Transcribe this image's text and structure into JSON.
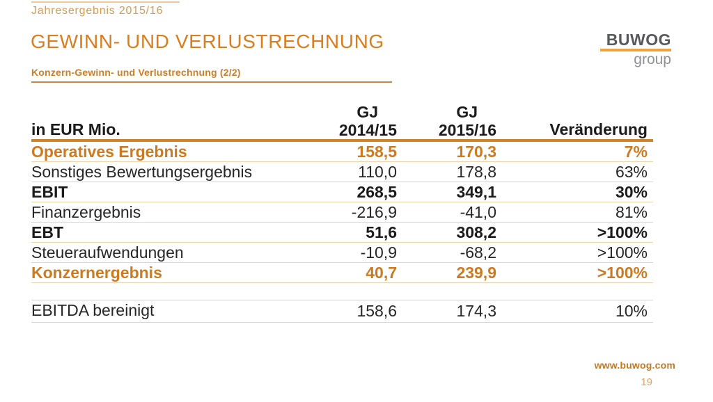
{
  "slide": {
    "eyebrow": "Jahresergebnis 2015/16",
    "title": "GEWINN- UND VERLUSTRECHNUNG",
    "subtitle": "Konzern-Gewinn- und Verlustrechnung (2/2)"
  },
  "logo": {
    "wordmark": "BUWOG",
    "suffix": "group"
  },
  "table": {
    "col_headers": {
      "label": "in EUR Mio.",
      "col2_line1": "GJ",
      "col2_line2": "2014/15",
      "col3_line1": "GJ",
      "col3_line2": "2015/16",
      "col4": "Veränderung"
    },
    "rows": [
      {
        "label": "Operatives Ergebnis",
        "gj1415": "158,5",
        "gj1516": "170,3",
        "change": "7%",
        "emphasis": "orange-bold"
      },
      {
        "label": "Sonstiges Bewertungsergebnis",
        "gj1415": "110,0",
        "gj1516": "178,8",
        "change": "63%",
        "emphasis": "regular"
      },
      {
        "label": "EBIT",
        "gj1415": "268,5",
        "gj1516": "349,1",
        "change": "30%",
        "emphasis": "bold"
      },
      {
        "label": "Finanzergebnis",
        "gj1415": "-216,9",
        "gj1516": "-41,0",
        "change": "81%",
        "emphasis": "regular"
      },
      {
        "label": "EBT",
        "gj1415": "51,6",
        "gj1516": "308,2",
        "change": ">100%",
        "emphasis": "bold"
      },
      {
        "label": "Steueraufwendungen",
        "gj1415": "-10,9",
        "gj1516": "-68,2",
        "change": ">100%",
        "emphasis": "regular"
      },
      {
        "label": "Konzernergebnis",
        "gj1415": "40,7",
        "gj1516": "239,9",
        "change": ">100%",
        "emphasis": "orange-bold"
      }
    ],
    "footnote_row": {
      "label": "EBITDA bereinigt",
      "gj1415": "158,6",
      "gj1516": "174,3",
      "change": "10%"
    }
  },
  "footer": {
    "url": "www.buwog.com",
    "page_number": "19"
  },
  "colors": {
    "accent_orange": "#da7d1f",
    "table_orange": "#cc7a20",
    "header_rule_orange": "#cd8430",
    "separator_tan": "#ebd2ab",
    "logo_orange": "#f0a23b",
    "logo_gray": "#58595b",
    "eyebrow_orange": "#d89a4e"
  }
}
